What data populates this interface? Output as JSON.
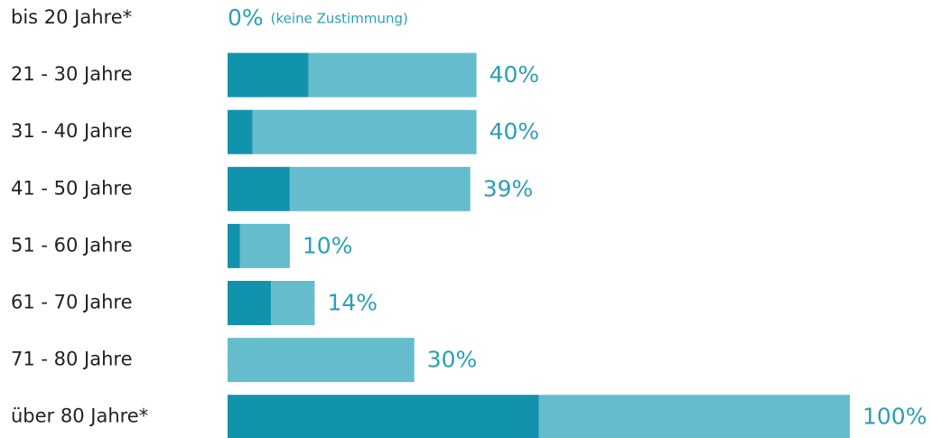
{
  "chart_data": {
    "type": "stacked-barh",
    "categories": [
      "bis 20 Jahre*",
      "21 - 30 Jahre",
      "31 - 40 Jahre",
      "41 - 50 Jahre",
      "51 - 60 Jahre",
      "61 - 70 Jahre",
      "71 - 80 Jahre",
      "über 80 Jahre*"
    ],
    "series": [
      {
        "color": "#1193ad",
        "values": [
          0,
          13,
          4,
          10,
          2,
          7,
          0,
          50
        ]
      },
      {
        "color": "#65bccd",
        "values": [
          0,
          27,
          36,
          29,
          8,
          7,
          30,
          50
        ]
      }
    ],
    "total_labels": [
      "0%",
      "40%",
      "40%",
      "39%",
      "10%",
      "14%",
      "30%",
      "100%"
    ],
    "annotations": [
      "(keine Zustimmung)"
    ],
    "xlim": [
      0,
      100
    ]
  }
}
